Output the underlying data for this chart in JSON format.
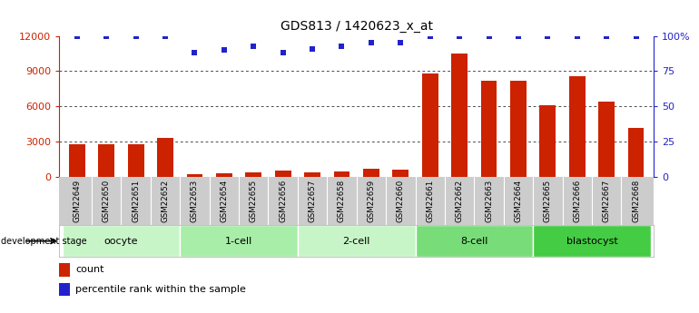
{
  "title": "GDS813 / 1420623_x_at",
  "samples": [
    "GSM22649",
    "GSM22650",
    "GSM22651",
    "GSM22652",
    "GSM22653",
    "GSM22654",
    "GSM22655",
    "GSM22656",
    "GSM22657",
    "GSM22658",
    "GSM22659",
    "GSM22660",
    "GSM22661",
    "GSM22662",
    "GSM22663",
    "GSM22664",
    "GSM22665",
    "GSM22666",
    "GSM22667",
    "GSM22668"
  ],
  "counts": [
    2750,
    2750,
    2750,
    3300,
    200,
    300,
    400,
    500,
    350,
    450,
    700,
    650,
    8800,
    10500,
    8200,
    8200,
    6100,
    8600,
    6400,
    4200
  ],
  "percentiles": [
    100,
    100,
    100,
    100,
    88,
    90,
    93,
    88,
    91,
    93,
    95,
    95,
    100,
    100,
    100,
    100,
    100,
    100,
    100,
    100
  ],
  "groups": [
    {
      "label": "oocyte",
      "start": 0,
      "end": 4,
      "color": "#c8f5c8"
    },
    {
      "label": "1-cell",
      "start": 4,
      "end": 8,
      "color": "#a8eda8"
    },
    {
      "label": "2-cell",
      "start": 8,
      "end": 12,
      "color": "#c8f5c8"
    },
    {
      "label": "8-cell",
      "start": 12,
      "end": 16,
      "color": "#78dd78"
    },
    {
      "label": "blastocyst",
      "start": 16,
      "end": 20,
      "color": "#44cc44"
    }
  ],
  "bar_color": "#cc2200",
  "dot_color": "#2222cc",
  "ylim_left": [
    0,
    12000
  ],
  "ylim_right": [
    0,
    100
  ],
  "yticks_left": [
    0,
    3000,
    6000,
    9000,
    12000
  ],
  "ytick_labels_left": [
    "0",
    "3000",
    "6000",
    "9000",
    "12000"
  ],
  "yticks_right": [
    0,
    25,
    50,
    75,
    100
  ],
  "ytick_labels_right": [
    "0",
    "25",
    "50",
    "75",
    "100%"
  ],
  "bar_color_left": "#cc2200",
  "bar_color_right": "#2222cc",
  "bar_width": 0.55,
  "sample_bg_color": "#cccccc",
  "dev_stage_label": "development stage",
  "legend_count": "count",
  "legend_pct": "percentile rank within the sample"
}
